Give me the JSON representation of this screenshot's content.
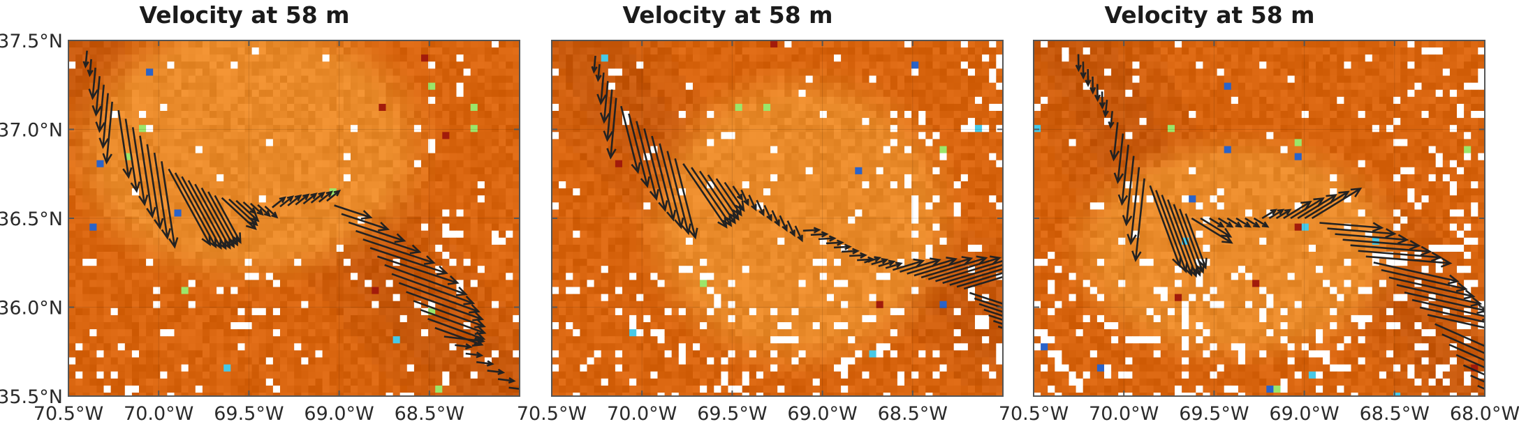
{
  "panels": [
    {
      "id": "panel-1",
      "title": "Velocity at 58 m",
      "show_y_labels": true,
      "seed": 11,
      "white_density": 0.04,
      "eddy": [
        0.4,
        0.3,
        0.32,
        0.3
      ]
    },
    {
      "id": "panel-2",
      "title": "Velocity at 58 m",
      "show_y_labels": false,
      "seed": 23,
      "white_density": 0.07,
      "eddy": [
        0.55,
        0.5,
        0.28,
        0.33
      ]
    },
    {
      "id": "panel-3",
      "title": "Velocity at 58 m",
      "show_y_labels": false,
      "seed": 37,
      "white_density": 0.1,
      "eddy": [
        0.45,
        0.58,
        0.3,
        0.25
      ]
    }
  ],
  "axes": {
    "x_ticks": [
      "70.5°W",
      "70.0°W",
      "69.5°W",
      "69.0°W",
      "68.5°W"
    ],
    "x_ticks_last_panel": [
      "70.5°W",
      "70.0°W",
      "69.5°W",
      "69.0°W",
      "68.5°W",
      "68.0°W"
    ],
    "y_ticks": [
      "37.5°N",
      "37.0°N",
      "36.5°N",
      "36.0°N",
      "35.5°N"
    ],
    "lon_range": [
      -70.5,
      -68.0
    ],
    "lat_range": [
      35.5,
      37.5
    ]
  },
  "colors": {
    "background": "#d8640e",
    "eddy": "#e98a2a",
    "dark": "#b94f0a",
    "arrow": "#222222",
    "frame": "#555555"
  }
}
